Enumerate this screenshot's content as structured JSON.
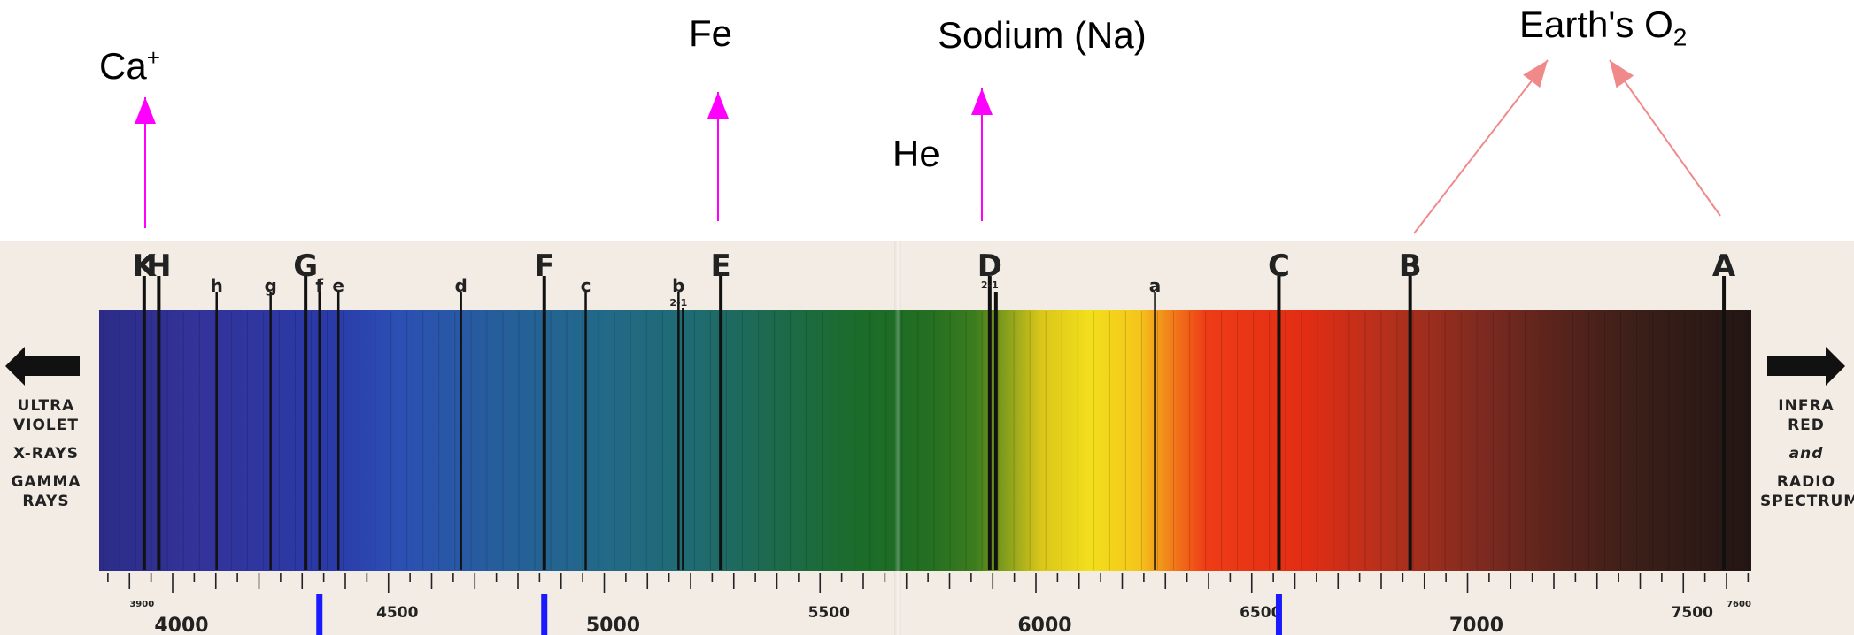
{
  "elements": {
    "calcium": {
      "label": "Ca",
      "sup": "+"
    },
    "iron": {
      "label": "Fe"
    },
    "sodium": {
      "label": "Sodium (Na)"
    },
    "helium": {
      "label": "He"
    },
    "oxygen": {
      "label": "Earth's O",
      "sub": "2"
    }
  },
  "side_labels": {
    "left": [
      "ULTRA",
      "VIOLET",
      "X-RAYS",
      "GAMMA",
      "RAYS"
    ],
    "right": [
      "INFRA",
      "RED",
      "and",
      "RADIO",
      "SPECTRUM"
    ]
  },
  "fraunhofer_lines": [
    {
      "label": "K",
      "wavelength": 3934,
      "size": "major"
    },
    {
      "label": "H",
      "wavelength": 3968,
      "size": "major"
    },
    {
      "label": "h",
      "wavelength": 4102,
      "size": "minor"
    },
    {
      "label": "g",
      "wavelength": 4227,
      "size": "minor"
    },
    {
      "label": "G",
      "wavelength": 4308,
      "size": "major"
    },
    {
      "label": "f",
      "wavelength": 4340,
      "size": "minor"
    },
    {
      "label": "e",
      "wavelength": 4384,
      "size": "minor"
    },
    {
      "label": "d",
      "wavelength": 4668,
      "size": "minor"
    },
    {
      "label": "F",
      "wavelength": 4861,
      "size": "major"
    },
    {
      "label": "c",
      "wavelength": 4957,
      "size": "minor"
    },
    {
      "label": "b",
      "sublabel": "2-1",
      "wavelength": 5172,
      "size": "minor"
    },
    {
      "label": "E",
      "wavelength": 5270,
      "size": "major"
    },
    {
      "label": "D",
      "sublabel": "2-1",
      "wavelength": 5893,
      "size": "major"
    },
    {
      "label": "a",
      "wavelength": 6276,
      "size": "minor"
    },
    {
      "label": "C",
      "wavelength": 6563,
      "size": "major"
    },
    {
      "label": "B",
      "wavelength": 6867,
      "size": "major"
    },
    {
      "label": "A",
      "wavelength": 7594,
      "size": "major"
    }
  ],
  "axis": {
    "min": 3800,
    "max": 7680,
    "major_ticks": [
      4000,
      4500,
      5000,
      5500,
      6000,
      6500,
      7000,
      7500
    ],
    "small_tick_labels": [
      3900,
      7600
    ]
  },
  "marked_wavelengths": [
    4340,
    4861,
    6563
  ],
  "colors": {
    "arrow_magenta": "#ff00ff",
    "arrow_salmon": "#f08a8a",
    "marker_blue": "#1a1aff",
    "line_dark": "#111111"
  }
}
